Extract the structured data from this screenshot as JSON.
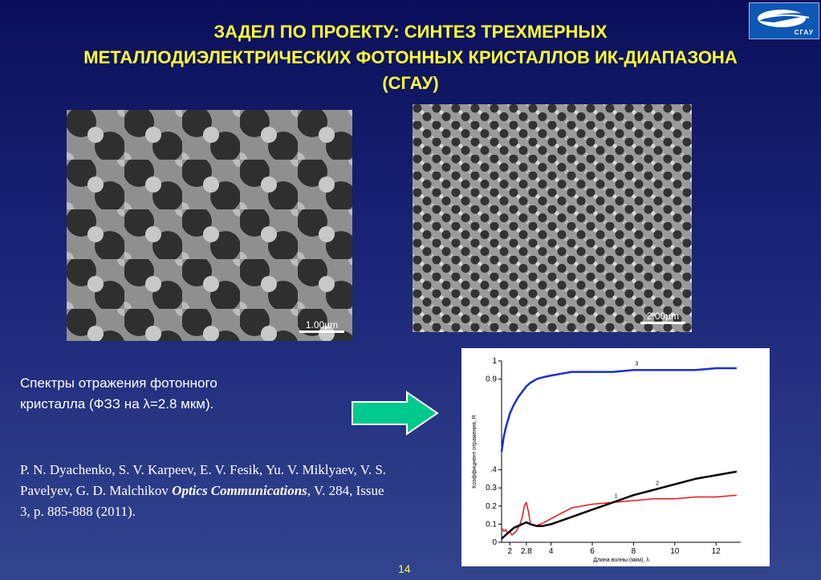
{
  "slide": {
    "title_lines": [
      "ЗАДЕЛ ПО ПРОЕКТУ: СИНТЕЗ ТРЕХМЕРНЫХ",
      "МЕТАЛЛОДИЭЛЕКТРИЧЕСКИХ ФОТОННЫХ КРИСТАЛЛОВ ИК-ДИАПАЗОНА",
      "(СГАУ)"
    ],
    "logo_text": "СГАУ",
    "images": [
      {
        "scale_label": "1.00µm"
      },
      {
        "scale_label": "2.00µm"
      }
    ],
    "caption_line1": "Спектры отражения фотонного",
    "caption_line2": "кристалла (ФЗЗ на λ=2.8 мкм).",
    "reference": {
      "authors": "P. N. Dyachenko, S. V. Karpeev, E. V. Fesik, Yu. V. Miklyaev, V. S. Pavelyev, G. D. Malchikov",
      "journal": "Optics Communications",
      "details": ", V. 284, Issue 3, p. 885-888 (2011)."
    },
    "page_number": "14"
  },
  "chart_data": {
    "type": "line",
    "xlabel": "Длина волны (мкм), λ",
    "ylabel": "Коэффициент отражения, R",
    "xlim": [
      1.6,
      13.2
    ],
    "ylim": [
      0,
      1
    ],
    "x_ticks": [
      "2",
      "2.8",
      "4",
      "6",
      "8",
      "10",
      "12"
    ],
    "y_ticks": [
      "0",
      "0.1",
      "0.2",
      "0.3",
      ".4",
      "0.9",
      "1"
    ],
    "series": [
      {
        "name": "1",
        "color": "#e41a1a",
        "x": [
          1.6,
          1.7,
          1.8,
          1.9,
          2.0,
          2.1,
          2.2,
          2.3,
          2.4,
          2.5,
          2.6,
          2.7,
          2.8,
          2.9,
          3.0,
          3.2,
          3.5,
          4.0,
          4.5,
          5.0,
          5.5,
          6.0,
          7.0,
          8.0,
          9.0,
          10.0,
          11.0,
          12.0,
          13.0
        ],
        "y": [
          0.08,
          0.06,
          0.07,
          0.05,
          0.06,
          0.04,
          0.05,
          0.06,
          0.08,
          0.1,
          0.14,
          0.2,
          0.22,
          0.17,
          0.1,
          0.09,
          0.1,
          0.13,
          0.16,
          0.19,
          0.2,
          0.21,
          0.22,
          0.23,
          0.24,
          0.24,
          0.25,
          0.25,
          0.26
        ]
      },
      {
        "name": "2",
        "color": "#000000",
        "x": [
          1.6,
          1.8,
          2.0,
          2.2,
          2.4,
          2.6,
          2.8,
          3.0,
          3.3,
          3.6,
          4.0,
          4.5,
          5.0,
          5.5,
          6.0,
          7.0,
          8.0,
          9.0,
          10.0,
          11.0,
          12.0,
          13.0
        ],
        "y": [
          0.02,
          0.04,
          0.06,
          0.08,
          0.09,
          0.1,
          0.11,
          0.1,
          0.09,
          0.09,
          0.1,
          0.12,
          0.14,
          0.16,
          0.18,
          0.22,
          0.26,
          0.29,
          0.32,
          0.35,
          0.37,
          0.39
        ]
      },
      {
        "name": "3",
        "color": "#1a2fd1",
        "x": [
          1.6,
          1.7,
          1.8,
          1.9,
          2.0,
          2.2,
          2.4,
          2.6,
          2.8,
          3.0,
          3.3,
          3.6,
          4.0,
          4.5,
          5.0,
          5.5,
          6.0,
          7.0,
          8.0,
          9.0,
          10.0,
          11.0,
          12.0,
          13.0
        ],
        "y": [
          0.5,
          0.58,
          0.63,
          0.67,
          0.71,
          0.76,
          0.8,
          0.83,
          0.86,
          0.88,
          0.9,
          0.91,
          0.92,
          0.93,
          0.94,
          0.94,
          0.94,
          0.94,
          0.95,
          0.95,
          0.95,
          0.95,
          0.96,
          0.96
        ]
      }
    ]
  }
}
